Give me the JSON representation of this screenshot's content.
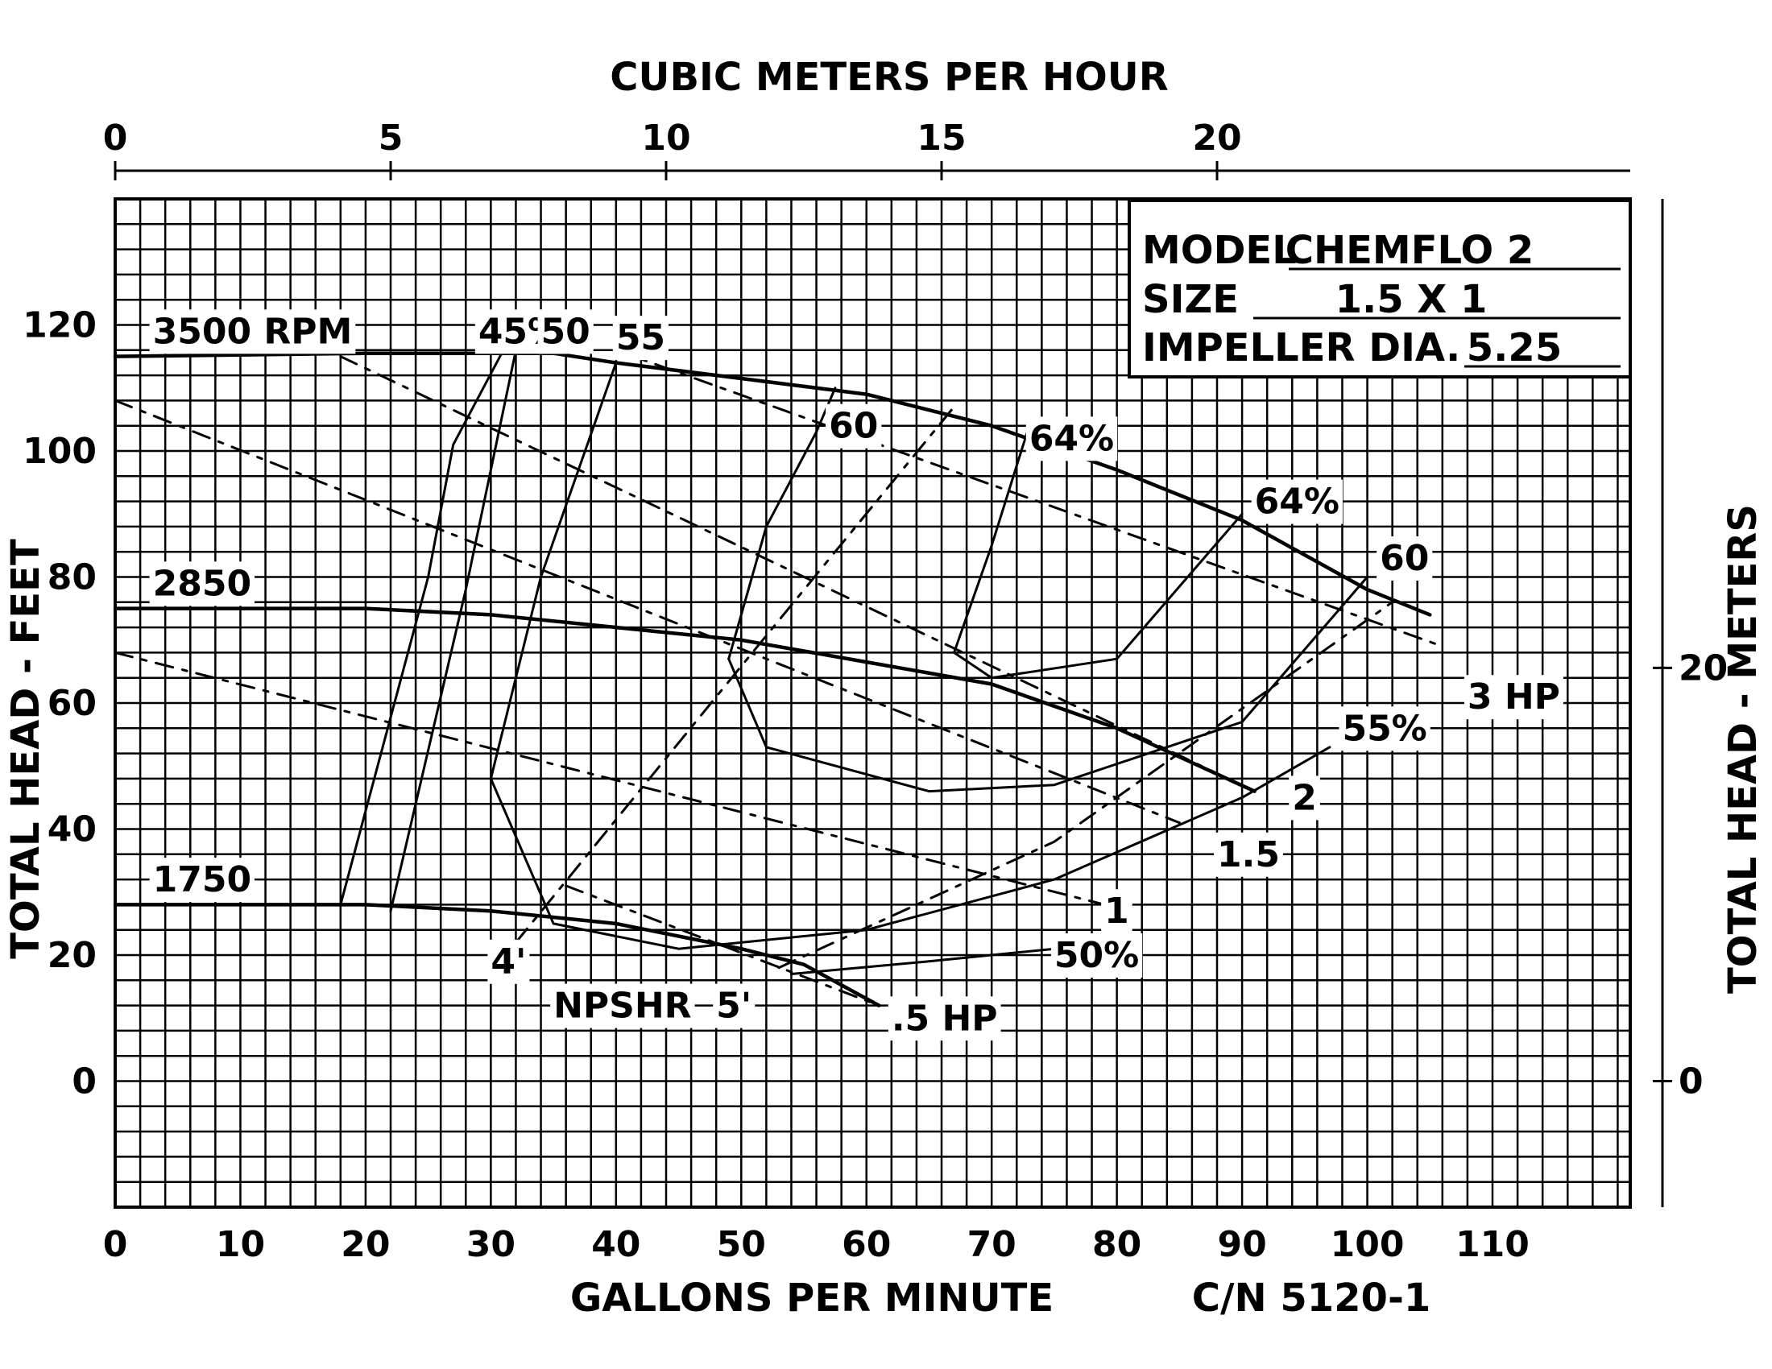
{
  "chart_data": {
    "type": "line",
    "title": "",
    "top_axis": {
      "label": "CUBIC METERS PER HOUR",
      "ticks": [
        0,
        5,
        10,
        15,
        20
      ],
      "range": [
        0,
        27.5
      ]
    },
    "bottom_axis": {
      "label": "GALLONS PER MINUTE",
      "ticks": [
        0,
        10,
        20,
        30,
        40,
        50,
        60,
        70,
        80,
        90,
        100,
        110
      ],
      "range": [
        0,
        121
      ]
    },
    "left_axis": {
      "label": "TOTAL HEAD - FEET",
      "ticks": [
        0,
        20,
        40,
        60,
        80,
        100,
        120
      ],
      "range": [
        -20,
        140
      ]
    },
    "right_axis": {
      "label": "TOTAL HEAD - METERS",
      "ticks": [
        0,
        20
      ],
      "range": [
        -6.1,
        42.7
      ]
    },
    "grid": true,
    "curve_number": "C/N 5120-1",
    "info_box": {
      "model_label": "MODEL",
      "model_value": "CHEMFLO 2",
      "size_label": "SIZE",
      "size_value": "1.5 X 1",
      "impeller_label": "IMPELLER DIA.",
      "impeller_value": "5.25"
    },
    "head_curves": [
      {
        "label": "3500 RPM",
        "label_at": [
          3,
          119
        ],
        "points": [
          [
            0,
            115
          ],
          [
            20,
            115.5
          ],
          [
            35,
            115.5
          ],
          [
            40,
            114
          ],
          [
            50,
            111.5
          ],
          [
            60,
            109
          ],
          [
            70,
            104
          ],
          [
            80,
            97
          ],
          [
            90,
            89
          ],
          [
            100,
            78
          ],
          [
            105,
            74
          ]
        ]
      },
      {
        "label": "2850",
        "label_at": [
          3,
          79
        ],
        "points": [
          [
            0,
            75
          ],
          [
            20,
            75
          ],
          [
            30,
            74
          ],
          [
            40,
            72
          ],
          [
            50,
            70
          ],
          [
            60,
            66.5
          ],
          [
            70,
            63
          ],
          [
            80,
            56
          ],
          [
            91,
            46
          ]
        ]
      },
      {
        "label": "1750",
        "label_at": [
          3,
          32
        ],
        "points": [
          [
            0,
            28
          ],
          [
            20,
            28
          ],
          [
            30,
            27
          ],
          [
            40,
            25
          ],
          [
            50,
            21
          ],
          [
            55,
            18.5
          ],
          [
            61,
            12
          ]
        ]
      }
    ],
    "efficiency_curves": [
      {
        "label": "45%",
        "label_at": [
          29,
          119
        ],
        "points": [
          [
            18,
            28
          ],
          [
            25,
            80
          ],
          [
            27,
            101
          ],
          [
            31,
            116
          ]
        ]
      },
      {
        "label": "50",
        "label_at": [
          34,
          119
        ],
        "points": [
          [
            22,
            27
          ],
          [
            28,
            78
          ],
          [
            32,
            116
          ]
        ]
      },
      {
        "label": "55",
        "label_at": [
          40,
          118
        ],
        "points": [
          [
            30,
            48
          ],
          [
            34,
            80
          ],
          [
            40,
            114
          ]
        ]
      },
      {
        "label": "60",
        "label_at": [
          57,
          104
        ],
        "points": [
          [
            49,
            67
          ],
          [
            52,
            88
          ],
          [
            56,
            103
          ],
          [
            57.5,
            110
          ]
        ]
      },
      {
        "label": "64%",
        "label_at": [
          73,
          102
        ],
        "points": [
          [
            67,
            68
          ],
          [
            70,
            85
          ],
          [
            73,
            104
          ]
        ]
      },
      {
        "label": "64%",
        "label_at": [
          91,
          92
        ],
        "points": [
          [
            67,
            68
          ],
          [
            70,
            64
          ],
          [
            80,
            67
          ],
          [
            90,
            90
          ]
        ]
      },
      {
        "label": "60",
        "label_at": [
          101,
          83
        ],
        "points": [
          [
            49,
            67
          ],
          [
            52,
            53
          ],
          [
            65,
            46
          ],
          [
            75,
            47
          ],
          [
            90,
            57
          ],
          [
            100,
            80
          ]
        ]
      },
      {
        "label": "55%",
        "label_at": [
          98,
          56
        ],
        "points": [
          [
            30,
            48
          ],
          [
            35,
            25
          ],
          [
            45,
            21
          ],
          [
            60,
            24
          ],
          [
            75,
            32
          ],
          [
            90,
            45
          ],
          [
            97,
            53
          ]
        ]
      },
      {
        "label": "50%",
        "label_at": [
          75,
          20
        ],
        "points": [
          [
            54,
            17
          ],
          [
            65,
            19
          ],
          [
            75,
            21
          ]
        ]
      }
    ],
    "horsepower_lines": [
      {
        "label": "3 HP",
        "label_at": [
          108,
          61
        ],
        "points": [
          [
            40,
            116
          ],
          [
            106,
            69
          ]
        ]
      },
      {
        "label": "2",
        "label_at": [
          94,
          45
        ],
        "points": [
          [
            18,
            115
          ],
          [
            91,
            46
          ]
        ]
      },
      {
        "label": "1.5",
        "label_at": [
          88,
          36
        ],
        "points": [
          [
            0,
            108
          ],
          [
            85,
            41
          ]
        ]
      },
      {
        "label": "1",
        "label_at": [
          79,
          27
        ],
        "points": [
          [
            0,
            68
          ],
          [
            81,
            27
          ]
        ]
      },
      {
        "label": ".5 HP",
        "label_at": [
          62,
          10
        ],
        "points": [
          [
            36,
            31
          ],
          [
            61,
            12
          ]
        ]
      }
    ],
    "npshr": {
      "label": "NPSHR",
      "label_at": [
        35,
        12
      ],
      "lines": [
        {
          "label": "4'",
          "label_at": [
            30,
            19
          ],
          "points": [
            [
              32,
              22
            ],
            [
              48,
              61
            ],
            [
              67,
              107
            ]
          ]
        },
        {
          "label": "5'",
          "label_at": [
            48,
            12
          ],
          "points": [
            [
              53,
              18
            ],
            [
              75,
              38
            ],
            [
              102,
              76
            ]
          ]
        }
      ]
    }
  }
}
